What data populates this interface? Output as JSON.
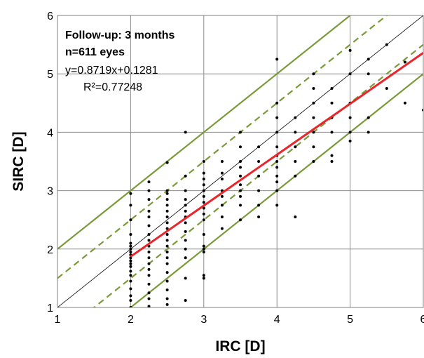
{
  "chart_data": {
    "type": "scatter",
    "title": "",
    "xlabel": "IRC [D]",
    "ylabel": "SIRC [D]",
    "xlim": [
      1,
      6
    ],
    "ylim": [
      1,
      6
    ],
    "x_ticks": [
      "1",
      "2",
      "3",
      "4",
      "5",
      "6"
    ],
    "y_ticks": [
      "1",
      "2",
      "3",
      "4",
      "5",
      "6"
    ],
    "grid": true,
    "legend": "none",
    "annotations": {
      "line1": "Follow-up: 3 months",
      "line2": "n=611 eyes",
      "equation": "y=0.8719x+0.1281",
      "r_squared": "R²=0.77248"
    },
    "fit": {
      "slope": 0.8719,
      "intercept": 0.1281,
      "x_range": [
        2,
        6
      ],
      "color": "#e8262b"
    },
    "reference_lines": [
      {
        "name": "identity",
        "offset": 0,
        "style": "solid",
        "color": "#000000"
      },
      {
        "name": "+0.5 D",
        "offset": 0.5,
        "style": "dashed",
        "color": "#7a9a3a"
      },
      {
        "name": "-0.5 D",
        "offset": -0.5,
        "style": "dashed",
        "color": "#7a9a3a"
      },
      {
        "name": "+1.0 D",
        "offset": 1.0,
        "style": "solid",
        "color": "#7a9a3a"
      },
      {
        "name": "-1.0 D",
        "offset": -1.0,
        "style": "solid",
        "color": "#7a9a3a"
      }
    ],
    "points": [
      [
        2,
        1.0
      ],
      [
        2,
        1.12
      ],
      [
        2,
        1.2
      ],
      [
        2,
        1.32
      ],
      [
        2,
        1.45
      ],
      [
        2,
        1.55
      ],
      [
        2,
        1.62
      ],
      [
        2,
        1.7
      ],
      [
        2,
        1.75
      ],
      [
        2,
        1.8
      ],
      [
        2,
        1.85
      ],
      [
        2,
        1.9
      ],
      [
        2,
        1.95
      ],
      [
        2,
        2.0
      ],
      [
        2,
        2.05
      ],
      [
        2,
        2.1
      ],
      [
        2,
        2.25
      ],
      [
        2,
        2.5
      ],
      [
        2,
        2.75
      ],
      [
        2,
        2.95
      ],
      [
        2.25,
        1.02
      ],
      [
        2.25,
        1.15
      ],
      [
        2.25,
        1.25
      ],
      [
        2.25,
        1.4
      ],
      [
        2.25,
        1.55
      ],
      [
        2.25,
        1.65
      ],
      [
        2.25,
        1.75
      ],
      [
        2.25,
        1.85
      ],
      [
        2.25,
        1.95
      ],
      [
        2.25,
        2.05
      ],
      [
        2.25,
        2.15
      ],
      [
        2.25,
        2.25
      ],
      [
        2.25,
        2.4
      ],
      [
        2.25,
        2.55
      ],
      [
        2.25,
        2.65
      ],
      [
        2.25,
        2.85
      ],
      [
        2.25,
        3.0
      ],
      [
        2.25,
        3.15
      ],
      [
        2.5,
        1.05
      ],
      [
        2.5,
        1.15
      ],
      [
        2.5,
        1.3
      ],
      [
        2.5,
        1.45
      ],
      [
        2.5,
        1.6
      ],
      [
        2.5,
        1.75
      ],
      [
        2.5,
        1.85
      ],
      [
        2.5,
        1.95
      ],
      [
        2.5,
        2.05
      ],
      [
        2.5,
        2.15
      ],
      [
        2.5,
        2.25
      ],
      [
        2.5,
        2.35
      ],
      [
        2.5,
        2.45
      ],
      [
        2.5,
        2.55
      ],
      [
        2.5,
        2.65
      ],
      [
        2.5,
        2.75
      ],
      [
        2.5,
        2.85
      ],
      [
        2.5,
        2.95
      ],
      [
        2.5,
        3.0
      ],
      [
        2.5,
        3.48
      ],
      [
        2.75,
        1.12
      ],
      [
        2.75,
        1.5
      ],
      [
        2.75,
        1.85
      ],
      [
        2.75,
        2.0
      ],
      [
        2.75,
        2.15
      ],
      [
        2.75,
        2.3
      ],
      [
        2.75,
        2.45
      ],
      [
        2.75,
        2.55
      ],
      [
        2.75,
        2.65
      ],
      [
        2.75,
        2.75
      ],
      [
        2.75,
        2.85
      ],
      [
        2.75,
        3.0
      ],
      [
        2.75,
        3.25
      ],
      [
        2.75,
        4.0
      ],
      [
        3,
        1.5
      ],
      [
        3,
        1.55
      ],
      [
        3,
        1.95
      ],
      [
        3,
        2.0
      ],
      [
        3,
        2.05
      ],
      [
        3,
        2.25
      ],
      [
        3,
        2.5
      ],
      [
        3,
        2.6
      ],
      [
        3,
        2.7
      ],
      [
        3,
        2.8
      ],
      [
        3,
        2.9
      ],
      [
        3,
        3.0
      ],
      [
        3,
        3.1
      ],
      [
        3,
        3.2
      ],
      [
        3,
        3.3
      ],
      [
        3,
        3.5
      ],
      [
        3.25,
        2.35
      ],
      [
        3.25,
        2.55
      ],
      [
        3.25,
        2.75
      ],
      [
        3.25,
        2.9
      ],
      [
        3.25,
        3.0
      ],
      [
        3.25,
        3.2
      ],
      [
        3.25,
        3.3
      ],
      [
        3.25,
        3.5
      ],
      [
        3.5,
        2.5
      ],
      [
        3.5,
        2.75
      ],
      [
        3.5,
        2.9
      ],
      [
        3.5,
        3.0
      ],
      [
        3.5,
        3.1
      ],
      [
        3.5,
        3.25
      ],
      [
        3.5,
        3.4
      ],
      [
        3.5,
        3.5
      ],
      [
        3.5,
        3.75
      ],
      [
        3.5,
        4.0
      ],
      [
        3.75,
        2.55
      ],
      [
        3.75,
        2.75
      ],
      [
        3.75,
        3.0
      ],
      [
        3.75,
        3.25
      ],
      [
        3.75,
        3.5
      ],
      [
        3.75,
        3.75
      ],
      [
        4,
        2.75
      ],
      [
        4,
        3.0
      ],
      [
        4,
        3.15
      ],
      [
        4,
        3.25
      ],
      [
        4,
        3.4
      ],
      [
        4,
        3.5
      ],
      [
        4,
        3.6
      ],
      [
        4,
        3.75
      ],
      [
        4,
        4.0
      ],
      [
        4,
        4.25
      ],
      [
        4,
        4.5
      ],
      [
        4,
        5.25
      ],
      [
        4.25,
        2.55
      ],
      [
        4.25,
        3.25
      ],
      [
        4.25,
        3.5
      ],
      [
        4.25,
        3.75
      ],
      [
        4.25,
        4.0
      ],
      [
        4.25,
        4.25
      ],
      [
        4.5,
        3.5
      ],
      [
        4.5,
        3.75
      ],
      [
        4.5,
        4.0
      ],
      [
        4.5,
        4.25
      ],
      [
        4.5,
        4.5
      ],
      [
        4.5,
        4.75
      ],
      [
        4.5,
        5.0
      ],
      [
        4.75,
        3.5
      ],
      [
        4.75,
        3.6
      ],
      [
        4.75,
        4.0
      ],
      [
        4.75,
        4.25
      ],
      [
        4.75,
        4.5
      ],
      [
        4.75,
        4.75
      ],
      [
        5,
        3.85
      ],
      [
        5,
        4.0
      ],
      [
        5,
        4.25
      ],
      [
        5,
        4.5
      ],
      [
        5,
        5.0
      ],
      [
        5,
        5.4
      ],
      [
        5.25,
        4.0
      ],
      [
        5.25,
        4.25
      ],
      [
        5.25,
        5.0
      ],
      [
        5.25,
        5.25
      ],
      [
        5.5,
        4.75
      ],
      [
        5.5,
        5.5
      ],
      [
        5.75,
        4.5
      ],
      [
        5.75,
        5.2
      ],
      [
        6,
        4.38
      ]
    ]
  }
}
